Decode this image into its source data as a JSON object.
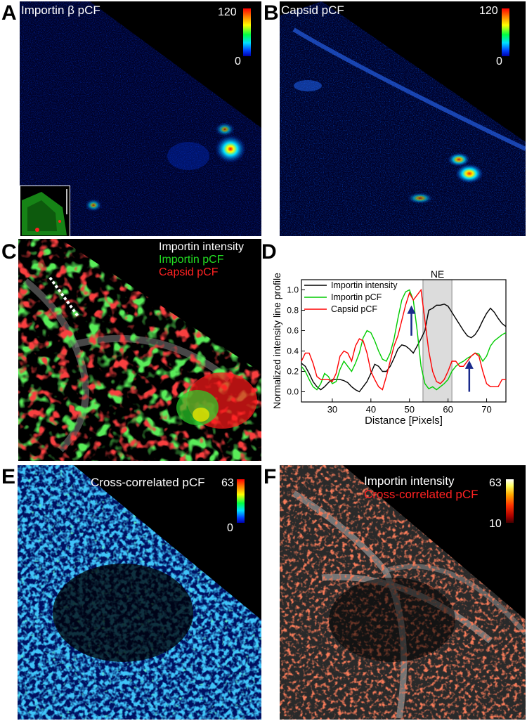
{
  "panels": {
    "A": {
      "letter": "A",
      "title": "Importin β pCF",
      "cbar_max": "120",
      "cbar_min": "0"
    },
    "B": {
      "letter": "B",
      "title": "Capsid pCF",
      "cbar_max": "120",
      "cbar_min": "0"
    },
    "C": {
      "letter": "C",
      "legend": [
        "Importin intensity",
        "Importin pCF",
        "Capsid pCF"
      ],
      "legend_colors": [
        "#ffffff",
        "#22dd22",
        "#ff2222"
      ]
    },
    "D": {
      "letter": "D"
    },
    "E": {
      "letter": "E",
      "title": "Cross-correlated pCF",
      "cbar_max": "63",
      "cbar_min": "0"
    },
    "F": {
      "letter": "F",
      "legend": [
        "Importin intensity",
        "Cross-correlated pCF"
      ],
      "legend_colors": [
        "#ffffff",
        "#ff2222"
      ],
      "cbar_max": "63",
      "cbar_min": "10"
    }
  },
  "chart_data": {
    "type": "line",
    "xlabel": "Distance [Pixels]",
    "ylabel": "Normalized  intensity line profile",
    "xlim": [
      22,
      75
    ],
    "ylim": [
      -0.1,
      1.1
    ],
    "xticks": [
      "30",
      "40",
      "50",
      "60",
      "70"
    ],
    "yticks": [
      "0.0",
      "0.2",
      "0.4",
      "0.6",
      "0.8",
      "1.0"
    ],
    "shaded_region": {
      "label": "NE",
      "x": [
        53.5,
        61
      ]
    },
    "arrows_x": [
      50.5,
      65.5
    ],
    "x": [
      22,
      23,
      24,
      25,
      26,
      27,
      28,
      29,
      30,
      31,
      32,
      33,
      34,
      35,
      36,
      37,
      38,
      39,
      40,
      41,
      42,
      43,
      44,
      45,
      46,
      47,
      48,
      49,
      50,
      51,
      52,
      53,
      54,
      55,
      56,
      57,
      58,
      59,
      60,
      61,
      62,
      63,
      64,
      65,
      66,
      67,
      68,
      69,
      70,
      71,
      72,
      73,
      74,
      75
    ],
    "series": [
      {
        "name": "Importin intensity",
        "color": "#000000",
        "values": [
          0.28,
          0.25,
          0.18,
          0.1,
          0.05,
          0.02,
          0.05,
          0.09,
          0.12,
          0.12,
          0.12,
          0.11,
          0.09,
          0.05,
          0.02,
          0.0,
          0.05,
          0.1,
          0.18,
          0.27,
          0.25,
          0.2,
          0.2,
          0.25,
          0.33,
          0.42,
          0.46,
          0.45,
          0.42,
          0.38,
          0.45,
          0.52,
          0.6,
          0.8,
          0.82,
          0.85,
          0.85,
          0.86,
          0.84,
          0.78,
          0.72,
          0.66,
          0.6,
          0.55,
          0.53,
          0.56,
          0.62,
          0.7,
          0.77,
          0.82,
          0.78,
          0.72,
          0.67,
          0.64
        ]
      },
      {
        "name": "Importin pCF",
        "color": "#00cc00",
        "values": [
          0.25,
          0.2,
          0.12,
          0.05,
          0.02,
          0.08,
          0.18,
          0.15,
          0.08,
          0.1,
          0.22,
          0.3,
          0.25,
          0.2,
          0.28,
          0.38,
          0.53,
          0.6,
          0.58,
          0.5,
          0.4,
          0.32,
          0.3,
          0.38,
          0.52,
          0.72,
          0.9,
          0.98,
          1.0,
          0.9,
          0.6,
          0.25,
          0.08,
          0.03,
          0.05,
          0.02,
          0.05,
          0.08,
          0.12,
          0.2,
          0.25,
          0.28,
          0.3,
          0.33,
          0.35,
          0.38,
          0.37,
          0.3,
          0.35,
          0.45,
          0.5,
          0.53,
          0.56,
          0.58
        ]
      },
      {
        "name": "Capsid pCF",
        "color": "#ff0000",
        "values": [
          0.3,
          0.38,
          0.38,
          0.28,
          0.15,
          0.12,
          0.12,
          0.12,
          0.1,
          0.18,
          0.35,
          0.4,
          0.38,
          0.3,
          0.45,
          0.52,
          0.5,
          0.38,
          0.2,
          0.12,
          0.05,
          0.02,
          0.15,
          0.3,
          0.45,
          0.55,
          0.7,
          0.85,
          0.97,
          0.9,
          0.95,
          1.0,
          0.7,
          0.4,
          0.2,
          0.1,
          0.08,
          0.12,
          0.2,
          0.3,
          0.3,
          0.25,
          0.25,
          0.3,
          0.35,
          0.38,
          0.35,
          0.2,
          0.08,
          0.05,
          0.05,
          0.05,
          0.12,
          0.12
        ]
      }
    ]
  }
}
